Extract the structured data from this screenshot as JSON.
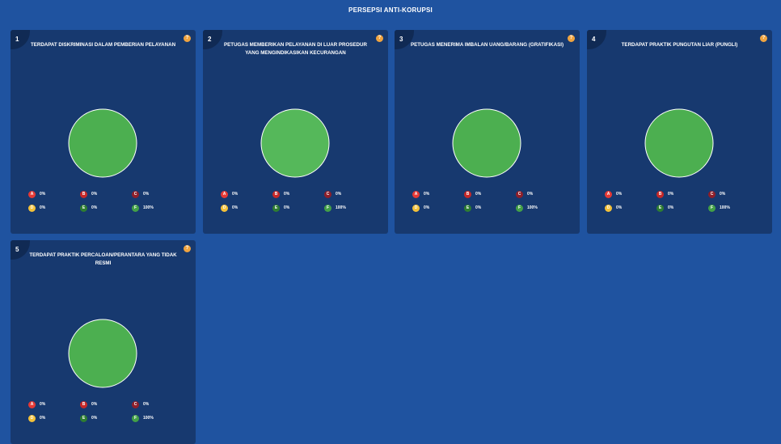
{
  "header": {
    "title": "PERSEPSI ANTI-KORUPSI"
  },
  "colors": {
    "page_bg": "#1f53a0",
    "card_bg": "#17396f",
    "pie_fill": "#4caf50",
    "pie_fill_highlight": "#55b85a",
    "A": "#e53935",
    "B": "#c62828",
    "C": "#8e1f2a",
    "D": "#f3c13a",
    "E": "#2e7d32",
    "F": "#43a047"
  },
  "icons": {
    "help": "question-mark-icon"
  },
  "questions": [
    {
      "number": "1",
      "title": "TERDAPAT DISKRIMINASI DALAM PEMBERIAN PELAYANAN",
      "help_label": "?",
      "chart_data": {
        "type": "pie",
        "categories": [
          "A",
          "B",
          "C",
          "D",
          "E",
          "F"
        ],
        "values": [
          0,
          0,
          0,
          0,
          0,
          100
        ],
        "labels": [
          "0%",
          "0%",
          "0%",
          "0%",
          "0%",
          "100%"
        ]
      }
    },
    {
      "number": "2",
      "title": "PETUGAS MEMBERIKAN PELAYANAN DI LUAR PROSEDUR YANG MENGINDIKASIKAN KECURANGAN",
      "help_label": "?",
      "highlight": true,
      "chart_data": {
        "type": "pie",
        "categories": [
          "A",
          "B",
          "C",
          "D",
          "E",
          "F"
        ],
        "values": [
          0,
          0,
          0,
          0,
          0,
          100
        ],
        "labels": [
          "0%",
          "0%",
          "0%",
          "0%",
          "0%",
          "100%"
        ]
      }
    },
    {
      "number": "3",
      "title": "PETUGAS MENERIMA IMBALAN UANG/BARANG (GRATIFIKASI)",
      "help_label": "?",
      "chart_data": {
        "type": "pie",
        "categories": [
          "A",
          "B",
          "C",
          "D",
          "E",
          "F"
        ],
        "values": [
          0,
          0,
          0,
          0,
          0,
          100
        ],
        "labels": [
          "0%",
          "0%",
          "0%",
          "0%",
          "0%",
          "100%"
        ]
      }
    },
    {
      "number": "4",
      "title": "TERDAPAT PRAKTIK PUNGUTAN LIAR (PUNGLI)",
      "help_label": "?",
      "chart_data": {
        "type": "pie",
        "categories": [
          "A",
          "B",
          "C",
          "D",
          "E",
          "F"
        ],
        "values": [
          0,
          0,
          0,
          0,
          0,
          100
        ],
        "labels": [
          "0%",
          "0%",
          "0%",
          "0%",
          "0%",
          "100%"
        ]
      }
    },
    {
      "number": "5",
      "title": "TERDAPAT PRAKTIK PERCALOAN/PERANTARA YANG TIDAK RESMI",
      "help_label": "?",
      "chart_data": {
        "type": "pie",
        "categories": [
          "A",
          "B",
          "C",
          "D",
          "E",
          "F"
        ],
        "values": [
          0,
          0,
          0,
          0,
          0,
          100
        ],
        "labels": [
          "0%",
          "0%",
          "0%",
          "0%",
          "0%",
          "100%"
        ]
      }
    }
  ]
}
